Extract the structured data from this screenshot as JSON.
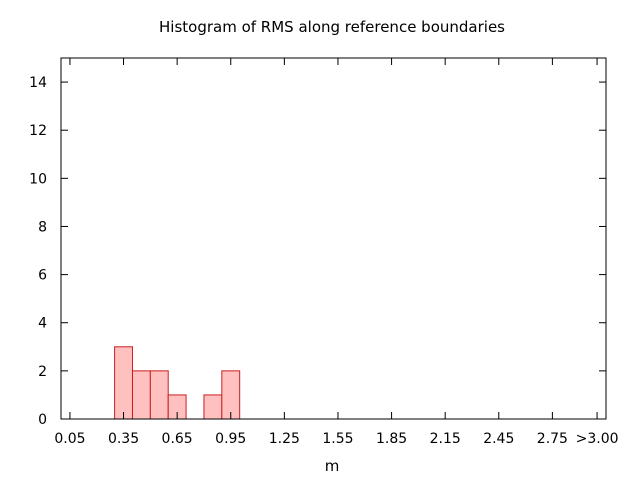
{
  "chart_data": {
    "type": "bar",
    "title": "Histogram of RMS along reference boundaries",
    "xlabel": "m",
    "ylabel": "",
    "bin_width": 0.1,
    "xlim": [
      0.0,
      3.05
    ],
    "ylim": [
      0,
      15
    ],
    "x_ticks": [
      0.05,
      0.35,
      0.65,
      0.95,
      1.25,
      1.55,
      1.85,
      2.15,
      2.45,
      2.75,
      3.0
    ],
    "x_tick_labels": [
      "0.05",
      "0.35",
      "0.65",
      "0.95",
      "1.25",
      "1.55",
      "1.85",
      "2.15",
      "2.45",
      "2.75",
      ">3.00"
    ],
    "y_ticks": [
      0,
      2,
      4,
      6,
      8,
      10,
      12,
      14
    ],
    "y_tick_labels": [
      "0",
      "2",
      "4",
      "6",
      "8",
      "10",
      "12",
      "14"
    ],
    "categories": [
      "0.35",
      "0.45",
      "0.55",
      "0.65",
      "0.85",
      "0.95"
    ],
    "x": [
      0.35,
      0.45,
      0.55,
      0.65,
      0.85,
      0.95
    ],
    "values": [
      3,
      2,
      2,
      1,
      1,
      2
    ],
    "grid": false,
    "legend": "none",
    "colors": {
      "bar_fill": "#ffc0c0",
      "bar_stroke": "#c81e1e",
      "axis": "#000000",
      "background": "#ffffff"
    }
  }
}
